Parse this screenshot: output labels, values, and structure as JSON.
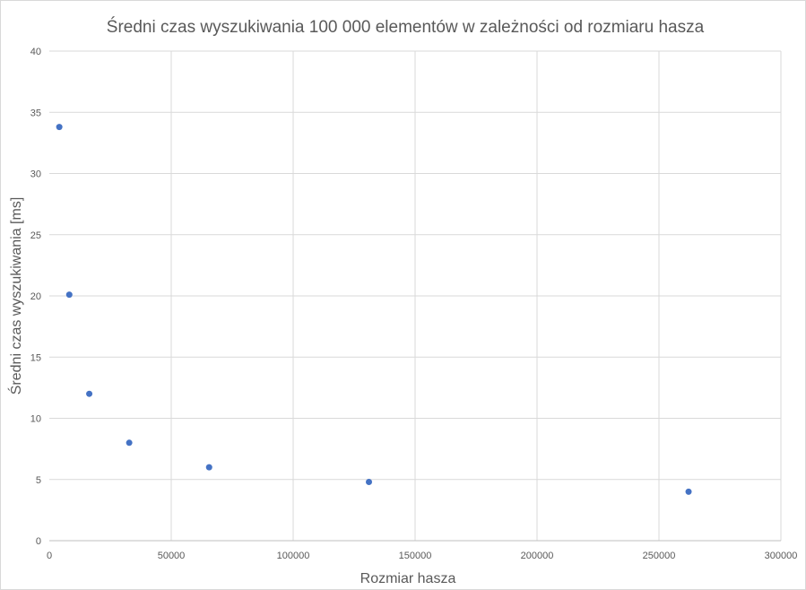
{
  "chart_data": {
    "type": "scatter",
    "title": "Średni czas wyszukiwania 100 000 elementów w zależności od rozmiaru hasza",
    "xlabel": "Rozmiar hasza",
    "ylabel": "Średni czas wyszukiwania [ms]",
    "xlim": [
      0,
      300000
    ],
    "ylim": [
      0,
      40
    ],
    "xticks": [
      0,
      50000,
      100000,
      150000,
      200000,
      250000,
      300000
    ],
    "yticks": [
      0,
      5,
      10,
      15,
      20,
      25,
      30,
      35,
      40
    ],
    "grid": true,
    "legend": "none",
    "series": [
      {
        "name": "Średni czas wyszukiwania",
        "color": "#4472c4",
        "points": [
          {
            "x": 4096,
            "y": 33.8
          },
          {
            "x": 8192,
            "y": 20.1
          },
          {
            "x": 16384,
            "y": 12.0
          },
          {
            "x": 32768,
            "y": 8.0
          },
          {
            "x": 65536,
            "y": 6.0
          },
          {
            "x": 131072,
            "y": 4.8
          },
          {
            "x": 262144,
            "y": 4.0
          }
        ]
      }
    ]
  }
}
